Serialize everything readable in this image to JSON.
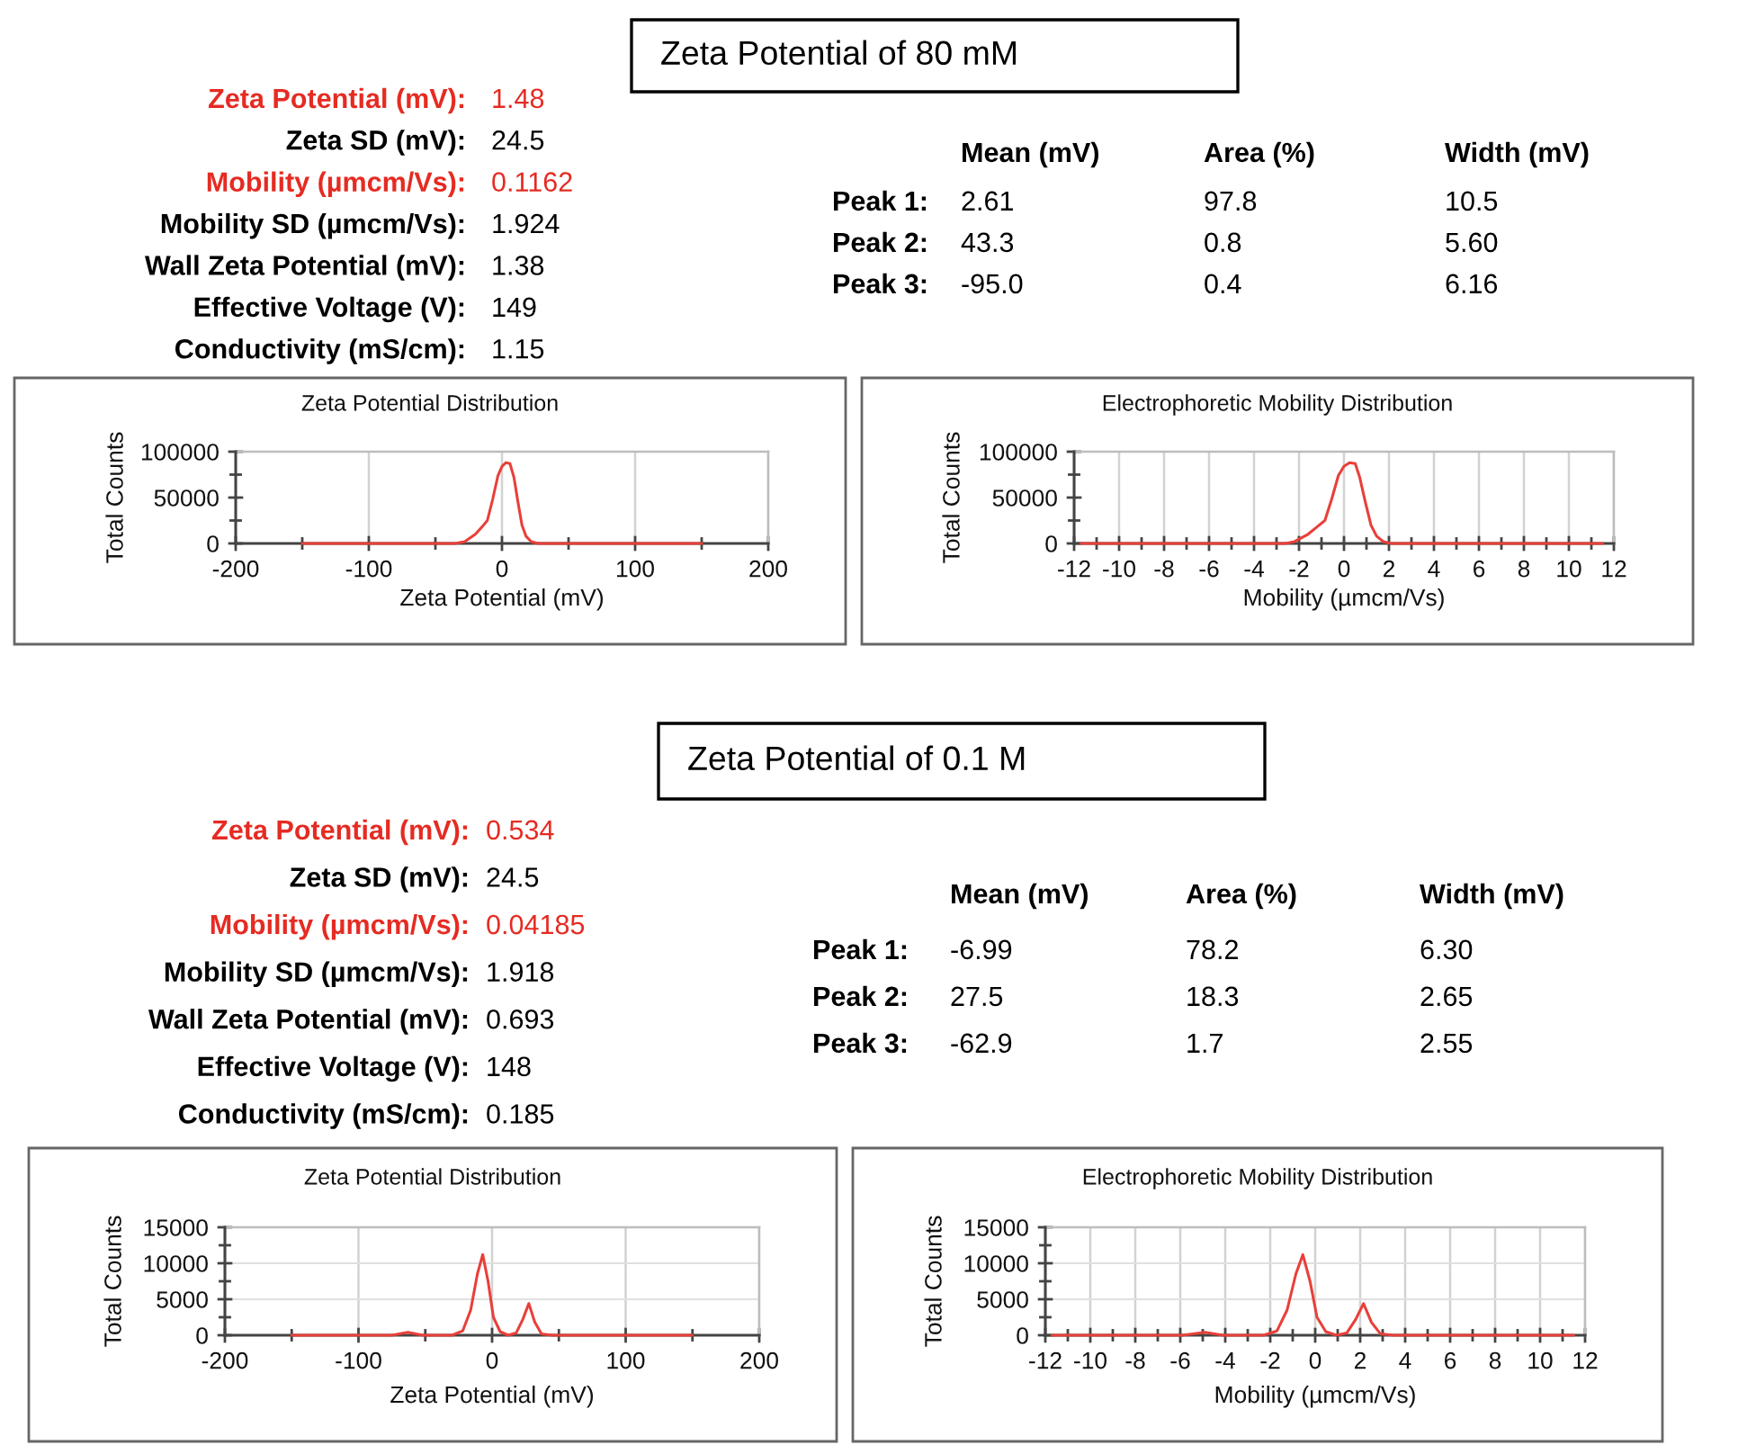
{
  "chart_data": [
    {
      "type": "other",
      "title": "Zeta Potential of 80 mM",
      "y_categories": [
        "Zeta Potential (mV):",
        "Zeta SD (mV):",
        "Mobility (µmcm/Vs):",
        "Mobility SD (µmcm/Vs):",
        "Wall Zeta Potential (mV):",
        "Effective Voltage (V):",
        "Conductivity (mS/cm):"
      ],
      "cell_labels": [
        [
          "1.48"
        ],
        [
          "24.5"
        ],
        [
          "0.1162"
        ],
        [
          "1.924"
        ],
        [
          "1.38"
        ],
        [
          "149"
        ],
        [
          "1.15"
        ]
      ],
      "colors": [
        "#e52b22",
        "#000000",
        "#e52b22",
        "#000000",
        "#000000",
        "#000000",
        "#000000"
      ]
    },
    {
      "type": "other",
      "categories": [
        "Mean (mV)",
        "Area (%)",
        "Width (mV)"
      ],
      "y_categories": [
        "Peak 1:",
        "Peak 2:",
        "Peak 3:"
      ],
      "cell_labels": [
        [
          "2.61",
          "97.8",
          "10.5"
        ],
        [
          "43.3",
          "0.8",
          "5.60"
        ],
        [
          "-95.0",
          "0.4",
          "6.16"
        ]
      ]
    },
    {
      "type": "line",
      "title": "Zeta Potential Distribution",
      "xlabel": "Zeta Potential (mV)",
      "ylabel": "Total Counts",
      "x": [
        -150,
        -100,
        -50,
        -35,
        -28,
        -20,
        -15,
        -11,
        -7,
        -3,
        0,
        3,
        6,
        9,
        12,
        15,
        18,
        22,
        27,
        35,
        50,
        100,
        150
      ],
      "series": [
        {
          "color": "#e8403a",
          "values": [
            0,
            0,
            0,
            0,
            2000,
            10000,
            18000,
            25000,
            48000,
            74000,
            84000,
            88000,
            87000,
            72000,
            45000,
            20000,
            8000,
            2000,
            0,
            0,
            0,
            0,
            0
          ]
        }
      ],
      "xlim": [
        -200,
        200
      ],
      "xticks": [
        -200,
        {
          "value": -150,
          "label": null
        },
        -100,
        {
          "value": -50,
          "label": null
        },
        0,
        {
          "value": 50,
          "label": null
        },
        100,
        {
          "value": 150,
          "label": null
        },
        200
      ],
      "ylim": [
        0,
        100000
      ],
      "yticks": [
        0,
        {
          "value": 25000,
          "label": null
        },
        50000,
        {
          "value": 75000,
          "label": null
        },
        100000
      ],
      "grid": "x"
    },
    {
      "type": "line",
      "title": "Electrophoretic Mobility Distribution",
      "xlabel": "Mobility (µmcm/Vs)",
      "ylabel": "Total Counts",
      "x": [
        -11.7,
        -8,
        -4,
        -2.6,
        -2.2,
        -1.6,
        -1.2,
        -0.85,
        -0.55,
        -0.25,
        0,
        0.25,
        0.5,
        0.7,
        0.95,
        1.2,
        1.45,
        1.75,
        2.1,
        2.7,
        4,
        8,
        11.5
      ],
      "series": [
        {
          "color": "#e8403a",
          "values": [
            0,
            0,
            0,
            0,
            2000,
            10000,
            18000,
            25000,
            48000,
            74000,
            84000,
            88000,
            87000,
            72000,
            45000,
            20000,
            8000,
            2000,
            0,
            0,
            0,
            0,
            0
          ]
        }
      ],
      "xlim": [
        -12,
        12
      ],
      "xticks": [
        -12,
        {
          "value": -11,
          "label": null
        },
        -10,
        {
          "value": -9,
          "label": null
        },
        -8,
        {
          "value": -7,
          "label": null
        },
        -6,
        {
          "value": -5,
          "label": null
        },
        -4,
        {
          "value": -3,
          "label": null
        },
        -2,
        {
          "value": -1,
          "label": null
        },
        0,
        {
          "value": 1,
          "label": null
        },
        2,
        {
          "value": 3,
          "label": null
        },
        4,
        {
          "value": 5,
          "label": null
        },
        6,
        {
          "value": 7,
          "label": null
        },
        8,
        {
          "value": 9,
          "label": null
        },
        10,
        {
          "value": 11,
          "label": null
        },
        12
      ],
      "ylim": [
        0,
        100000
      ],
      "yticks": [
        0,
        {
          "value": 25000,
          "label": null
        },
        50000,
        {
          "value": 75000,
          "label": null
        },
        100000
      ],
      "grid": "x"
    },
    {
      "type": "other",
      "title": "Zeta Potential of 0.1 M",
      "y_categories": [
        "Zeta Potential (mV):",
        "Zeta SD (mV):",
        "Mobility (µmcm/Vs):",
        "Mobility SD (µmcm/Vs):",
        "Wall Zeta Potential (mV):",
        "Effective Voltage (V):",
        "Conductivity (mS/cm):"
      ],
      "cell_labels": [
        [
          "0.534"
        ],
        [
          "24.5"
        ],
        [
          "0.04185"
        ],
        [
          "1.918"
        ],
        [
          "0.693"
        ],
        [
          "148"
        ],
        [
          "0.185"
        ]
      ],
      "colors": [
        "#e52b22",
        "#000000",
        "#e52b22",
        "#000000",
        "#000000",
        "#000000",
        "#000000"
      ]
    },
    {
      "type": "other",
      "categories": [
        "Mean (mV)",
        "Area (%)",
        "Width (mV)"
      ],
      "y_categories": [
        "Peak 1:",
        "Peak 2:",
        "Peak 3:"
      ],
      "cell_labels": [
        [
          "-6.99",
          "78.2",
          "6.30"
        ],
        [
          "27.5",
          "18.3",
          "2.65"
        ],
        [
          "-62.9",
          "1.7",
          "2.55"
        ]
      ]
    },
    {
      "type": "line",
      "title": "Zeta Potential Distribution",
      "xlabel": "Zeta Potential (mV)",
      "ylabel": "Total Counts",
      "x": [
        -150,
        -100,
        -75,
        -63,
        -52,
        -30,
        -22,
        -16,
        -11,
        -7,
        -3,
        1,
        6,
        12,
        18,
        23,
        27.5,
        32,
        37,
        45,
        100,
        150
      ],
      "series": [
        {
          "color": "#e8403a",
          "values": [
            0,
            0,
            0,
            400,
            0,
            0,
            600,
            3500,
            8500,
            11200,
            7500,
            2500,
            500,
            0,
            300,
            2200,
            4400,
            1800,
            200,
            0,
            0,
            0
          ]
        }
      ],
      "xlim": [
        -200,
        200
      ],
      "xticks": [
        -200,
        {
          "value": -150,
          "label": null
        },
        -100,
        {
          "value": -50,
          "label": null
        },
        0,
        {
          "value": 50,
          "label": null
        },
        100,
        {
          "value": 150,
          "label": null
        },
        200
      ],
      "ylim": [
        0,
        15000
      ],
      "yticks": [
        0,
        {
          "value": 2500,
          "label": null
        },
        5000,
        {
          "value": 7500,
          "label": null
        },
        10000,
        {
          "value": 12500,
          "label": null
        },
        15000
      ],
      "grid": true
    },
    {
      "type": "line",
      "title": "Electrophoretic Mobility Distribution",
      "xlabel": "Mobility (µmcm/Vs)",
      "ylabel": "Total Counts",
      "x": [
        -11.7,
        -7.8,
        -5.9,
        -4.9,
        -4.1,
        -2.3,
        -1.7,
        -1.25,
        -0.86,
        -0.55,
        -0.23,
        0.08,
        0.47,
        0.94,
        1.4,
        1.8,
        2.15,
        2.5,
        2.9,
        3.5,
        7.8,
        11.5
      ],
      "series": [
        {
          "color": "#e8403a",
          "values": [
            0,
            0,
            0,
            400,
            0,
            0,
            600,
            3500,
            8500,
            11200,
            7500,
            2500,
            500,
            0,
            300,
            2200,
            4400,
            1800,
            200,
            0,
            0,
            0
          ]
        }
      ],
      "xlim": [
        -12,
        12
      ],
      "xticks": [
        -12,
        {
          "value": -11,
          "label": null
        },
        -10,
        {
          "value": -9,
          "label": null
        },
        -8,
        {
          "value": -7,
          "label": null
        },
        -6,
        {
          "value": -5,
          "label": null
        },
        -4,
        {
          "value": -3,
          "label": null
        },
        -2,
        {
          "value": -1,
          "label": null
        },
        0,
        {
          "value": 1,
          "label": null
        },
        2,
        {
          "value": 3,
          "label": null
        },
        4,
        {
          "value": 5,
          "label": null
        },
        6,
        {
          "value": 7,
          "label": null
        },
        8,
        {
          "value": 9,
          "label": null
        },
        10,
        {
          "value": 11,
          "label": null
        },
        12
      ],
      "ylim": [
        0,
        15000
      ],
      "yticks": [
        0,
        {
          "value": 2500,
          "label": null
        },
        5000,
        {
          "value": 7500,
          "label": null
        },
        10000,
        {
          "value": 12500,
          "label": null
        },
        15000
      ],
      "grid": true
    }
  ]
}
